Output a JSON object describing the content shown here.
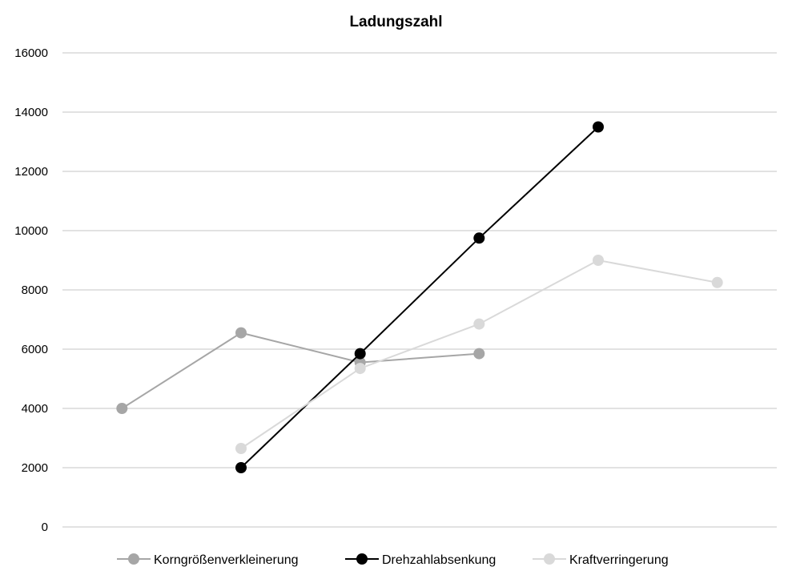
{
  "chart_data": {
    "type": "line",
    "title": "Ladungszahl",
    "xlabel": "",
    "ylabel": "",
    "x": [
      1,
      2,
      3,
      4,
      5,
      6
    ],
    "ylim": [
      0,
      16000
    ],
    "yticks": [
      0,
      2000,
      4000,
      6000,
      8000,
      10000,
      12000,
      14000,
      16000
    ],
    "grid": true,
    "legend_position": "bottom",
    "series": [
      {
        "name": "Korngrößenverkleinerung",
        "color": "#a6a6a6",
        "values": [
          4000,
          6550,
          5550,
          5850,
          null,
          null
        ]
      },
      {
        "name": "Drehzahlabsenkung",
        "color": "#000000",
        "values": [
          null,
          2000,
          5850,
          9750,
          13500,
          null
        ]
      },
      {
        "name": "Kraftverringerung",
        "color": "#d9d9d9",
        "values": [
          null,
          2650,
          5350,
          6850,
          9000,
          8250
        ]
      }
    ]
  }
}
